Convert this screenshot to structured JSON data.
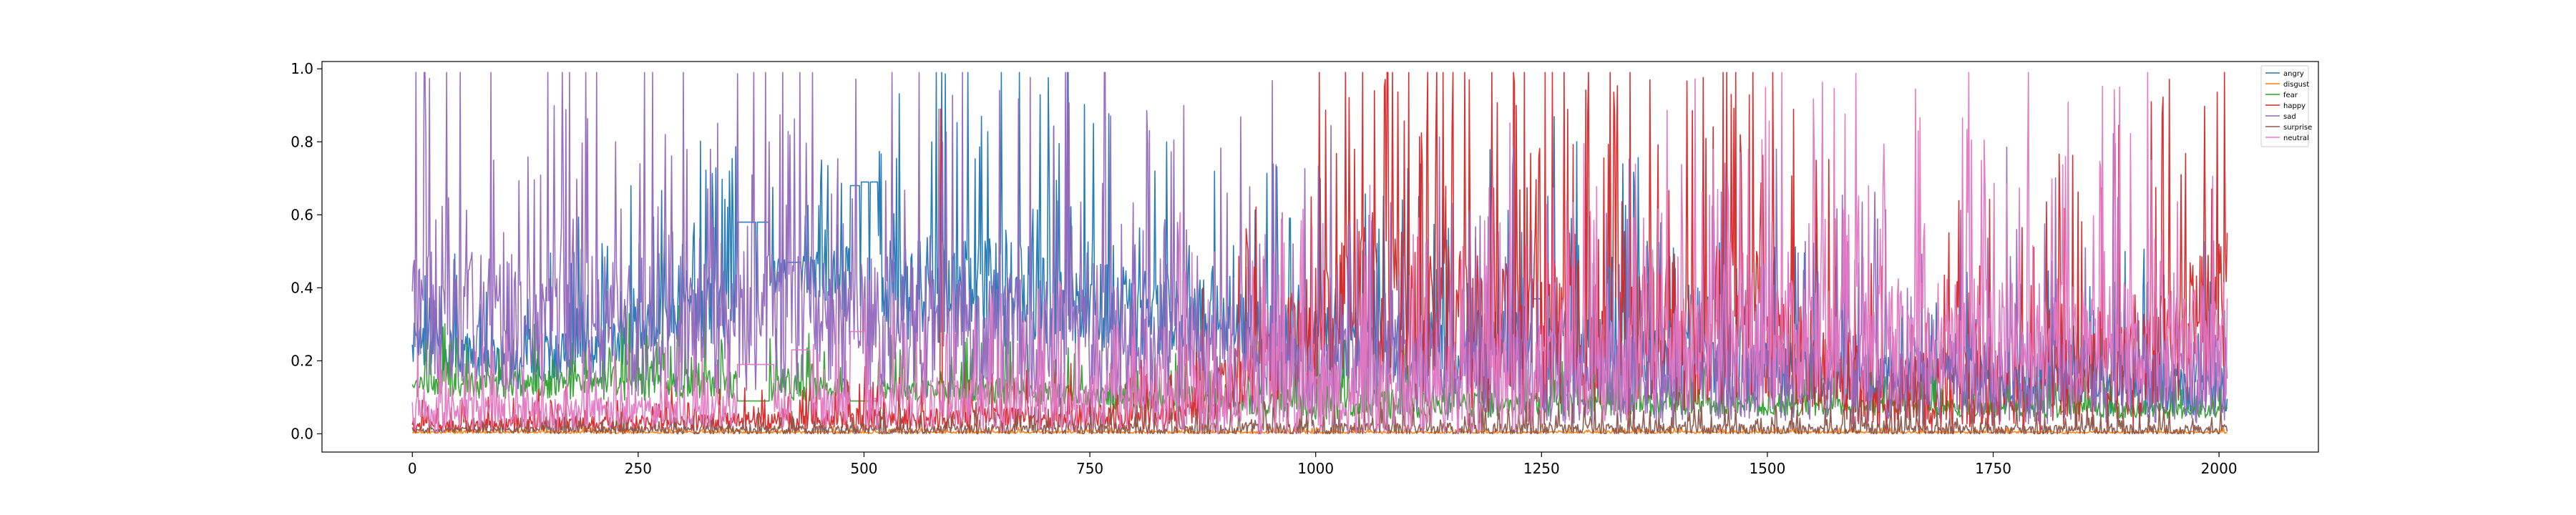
{
  "chart_data": {
    "type": "line",
    "title": "",
    "xlabel": "",
    "ylabel": "",
    "xlim": [
      -100,
      2110
    ],
    "ylim": [
      -0.05,
      1.02
    ],
    "n_points": 2010,
    "x_ticks": [
      0,
      250,
      500,
      750,
      1000,
      1250,
      1500,
      1750,
      2000
    ],
    "x_tick_labels": [
      "0",
      "250",
      "500",
      "750",
      "1000",
      "1250",
      "1500",
      "1750",
      "2000"
    ],
    "y_ticks": [
      0.0,
      0.2,
      0.4,
      0.6,
      0.8,
      1.0
    ],
    "y_tick_labels": [
      "0.0",
      "0.2",
      "0.4",
      "0.6",
      "0.8",
      "1.0"
    ],
    "grid": false,
    "legend_position": "top-right",
    "series": [
      {
        "name": "angry",
        "color": "#1f77b4",
        "profile": [
          {
            "x": 0,
            "level": 0.25,
            "spread": 0.12
          },
          {
            "x": 120,
            "level": 0.18,
            "spread": 0.12
          },
          {
            "x": 340,
            "level": 0.35,
            "spread": 0.2
          },
          {
            "x": 420,
            "level": 0.45,
            "spread": 0.08
          },
          {
            "x": 520,
            "level": 0.4,
            "spread": 0.3
          },
          {
            "x": 700,
            "level": 0.38,
            "spread": 0.3
          },
          {
            "x": 880,
            "level": 0.3,
            "spread": 0.2
          },
          {
            "x": 1000,
            "level": 0.25,
            "spread": 0.2
          },
          {
            "x": 1300,
            "level": 0.22,
            "spread": 0.25
          },
          {
            "x": 1600,
            "level": 0.15,
            "spread": 0.15
          },
          {
            "x": 2010,
            "level": 0.12,
            "spread": 0.15
          }
        ],
        "peaks": [
          {
            "x": 380,
            "y": 0.58
          },
          {
            "x": 505,
            "y": 0.69
          },
          {
            "x": 575,
            "y": 0.8
          },
          {
            "x": 630,
            "y": 0.87
          },
          {
            "x": 705,
            "y": 0.72
          },
          {
            "x": 835,
            "y": 0.8
          },
          {
            "x": 1005,
            "y": 0.7
          },
          {
            "x": 1340,
            "y": 0.74
          }
        ],
        "plateaus": [
          {
            "from": 360,
            "to": 395,
            "y": 0.58
          },
          {
            "from": 415,
            "to": 430,
            "y": 0.47
          },
          {
            "from": 485,
            "to": 495,
            "y": 0.68
          },
          {
            "from": 497,
            "to": 515,
            "y": 0.69
          },
          {
            "from": 1240,
            "to": 1250,
            "y": 0.37
          }
        ]
      },
      {
        "name": "disgust",
        "color": "#ff7f0e",
        "profile": [
          {
            "x": 0,
            "level": 0.004,
            "spread": 0.006
          },
          {
            "x": 2010,
            "level": 0.004,
            "spread": 0.006
          }
        ],
        "peaks": [],
        "plateaus": []
      },
      {
        "name": "fear",
        "color": "#2ca02c",
        "profile": [
          {
            "x": 0,
            "level": 0.13,
            "spread": 0.06
          },
          {
            "x": 250,
            "level": 0.14,
            "spread": 0.1
          },
          {
            "x": 500,
            "level": 0.12,
            "spread": 0.06
          },
          {
            "x": 800,
            "level": 0.1,
            "spread": 0.07
          },
          {
            "x": 1000,
            "level": 0.08,
            "spread": 0.08
          },
          {
            "x": 1500,
            "level": 0.08,
            "spread": 0.06
          },
          {
            "x": 2010,
            "level": 0.06,
            "spread": 0.04
          }
        ],
        "peaks": [
          {
            "x": 255,
            "y": 0.3
          },
          {
            "x": 540,
            "y": 0.23
          },
          {
            "x": 710,
            "y": 0.2
          }
        ],
        "plateaus": [
          {
            "from": 360,
            "to": 395,
            "y": 0.09
          },
          {
            "from": 485,
            "to": 515,
            "y": 0.09
          }
        ]
      },
      {
        "name": "happy",
        "color": "#d62728",
        "profile": [
          {
            "x": 0,
            "level": 0.02,
            "spread": 0.03
          },
          {
            "x": 850,
            "level": 0.05,
            "spread": 0.08
          },
          {
            "x": 1050,
            "level": 0.35,
            "spread": 0.45
          },
          {
            "x": 1250,
            "level": 0.25,
            "spread": 0.45
          },
          {
            "x": 1480,
            "level": 0.3,
            "spread": 0.45
          },
          {
            "x": 1600,
            "level": 0.1,
            "spread": 0.2
          },
          {
            "x": 1900,
            "level": 0.15,
            "spread": 0.3
          },
          {
            "x": 2010,
            "level": 0.35,
            "spread": 0.45
          }
        ],
        "peaks": [
          {
            "x": 585,
            "y": 0.89
          },
          {
            "x": 1065,
            "y": 0.94
          },
          {
            "x": 1170,
            "y": 0.97
          },
          {
            "x": 1370,
            "y": 0.97
          },
          {
            "x": 1460,
            "y": 0.93
          },
          {
            "x": 1925,
            "y": 0.91
          }
        ],
        "plateaus": []
      },
      {
        "name": "sad",
        "color": "#9467bd",
        "profile": [
          {
            "x": 0,
            "level": 0.3,
            "spread": 0.4
          },
          {
            "x": 500,
            "level": 0.3,
            "spread": 0.4
          },
          {
            "x": 900,
            "level": 0.2,
            "spread": 0.3
          },
          {
            "x": 1300,
            "level": 0.15,
            "spread": 0.25
          },
          {
            "x": 2010,
            "level": 0.15,
            "spread": 0.25
          }
        ],
        "peaks": [
          {
            "x": 90,
            "y": 0.75
          },
          {
            "x": 225,
            "y": 0.8
          },
          {
            "x": 280,
            "y": 0.82
          },
          {
            "x": 395,
            "y": 0.8
          },
          {
            "x": 1510,
            "y": 0.78
          }
        ],
        "plateaus": []
      },
      {
        "name": "surprise",
        "color": "#8c564b",
        "profile": [
          {
            "x": 0,
            "level": 0.01,
            "spread": 0.015
          },
          {
            "x": 900,
            "level": 0.01,
            "spread": 0.04
          },
          {
            "x": 2010,
            "level": 0.01,
            "spread": 0.03
          }
        ],
        "peaks": [],
        "plateaus": []
      },
      {
        "name": "neutral",
        "color": "#e377c2",
        "profile": [
          {
            "x": 0,
            "level": 0.05,
            "spread": 0.1
          },
          {
            "x": 300,
            "level": 0.06,
            "spread": 0.08
          },
          {
            "x": 850,
            "level": 0.1,
            "spread": 0.2
          },
          {
            "x": 1100,
            "level": 0.1,
            "spread": 0.25
          },
          {
            "x": 1500,
            "level": 0.25,
            "spread": 0.35
          },
          {
            "x": 2010,
            "level": 0.25,
            "spread": 0.35
          }
        ],
        "peaks": [
          {
            "x": 1440,
            "y": 0.78
          },
          {
            "x": 1830,
            "y": 0.76
          },
          {
            "x": 1925,
            "y": 0.75
          }
        ],
        "plateaus": [
          {
            "from": 360,
            "to": 400,
            "y": 0.19
          },
          {
            "from": 420,
            "to": 440,
            "y": 0.23
          },
          {
            "from": 485,
            "to": 500,
            "y": 0.28
          }
        ]
      }
    ]
  }
}
